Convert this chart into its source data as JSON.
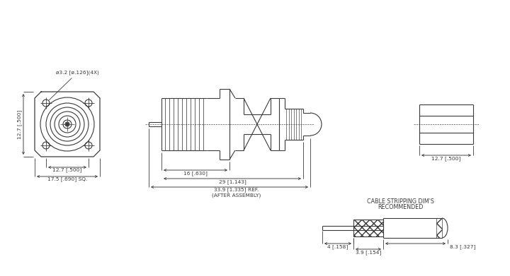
{
  "bg_color": "#ffffff",
  "line_color": "#3a3a3a",
  "fig_width": 7.2,
  "fig_height": 3.91,
  "dpi": 100,
  "labels": {
    "hole_label": "ø3.2 [ø.126](4X)",
    "width_label": "12.7 [.500]",
    "sq_label": "17.5 [.690] SQ.",
    "height_label": "12.7 [.500]",
    "len1_label": "16 [.630]",
    "len2_label": "29 [1.143]",
    "len3_label": "33.9 [1.335] REF.",
    "assembly_label": "(AFTER ASSEMBLY)",
    "side_width_label": "12.7 [.500]",
    "cable_label1": "RECOMMENDED",
    "cable_label2": "CABLE STRIPPING DIM'S",
    "cable_dim1": "4 [.158]",
    "cable_dim2": "3.9 [.154]",
    "cable_dim3": "8.3 [.327]"
  }
}
